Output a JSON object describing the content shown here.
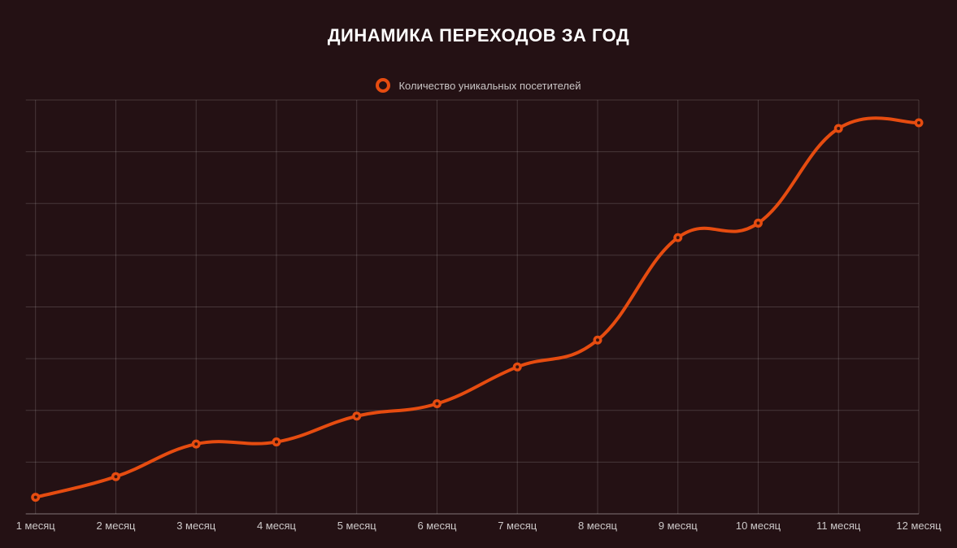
{
  "page": {
    "background_color": "#241114"
  },
  "chart_data": {
    "type": "line",
    "title": "ДИНАМИКА ПЕРЕХОДОВ ЗА ГОД",
    "xlabel": "",
    "ylabel": "",
    "categories": [
      "1 месяц",
      "2 месяц",
      "3 месяц",
      "4 месяц",
      "5 месяц",
      "6 месяц",
      "7 месяц",
      "8 месяц",
      "9 месяц",
      "10 месяц",
      "11 месяц",
      "12 месяц"
    ],
    "series": [
      {
        "name": "Количество уникальных посетителей",
        "values": [
          32,
          72,
          135,
          139,
          189,
          213,
          284,
          336,
          534,
          562,
          745,
          756
        ]
      }
    ],
    "ylim": [
      0,
      800
    ],
    "y_gridline_count": 9,
    "grid": "on",
    "y_tick_labels_visible": false,
    "legend_position": "top",
    "line_tension": 0.4,
    "marker_style": "ring",
    "colors": {
      "line": "#e64c10",
      "marker_fill": "#e64c10",
      "marker_center": "#3a130c",
      "grid": "rgba(255,255,255,0.16)",
      "axis_line": "rgba(255,255,255,0.42)",
      "tick_label": "#cdc9c9",
      "title": "#ffffff",
      "legend_text": "#c9c5c5",
      "background": "#241114"
    }
  }
}
